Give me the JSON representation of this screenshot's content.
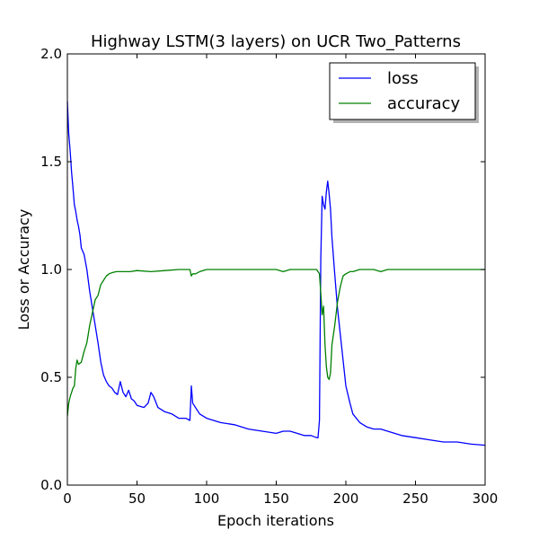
{
  "chart_data": {
    "type": "line",
    "title": "Highway LSTM(3 layers) on UCR Two_Patterns",
    "xlabel": "Epoch iterations",
    "ylabel": "Loss or Accuracy",
    "xlim": [
      0,
      300
    ],
    "ylim": [
      0,
      2.0
    ],
    "xticks": [
      0,
      50,
      100,
      150,
      200,
      250,
      300
    ],
    "xtick_labels": [
      "0",
      "50",
      "100",
      "150",
      "200",
      "250",
      "300"
    ],
    "yticks": [
      0,
      0.5,
      1.0,
      1.5,
      2.0
    ],
    "ytick_labels": [
      "0.0",
      "0.5",
      "1.0",
      "1.5",
      "2.0"
    ],
    "grid": false,
    "legend_position": "top-right",
    "series": [
      {
        "name": "loss",
        "color": "#0000ff",
        "x": [
          0,
          1,
          2,
          3,
          4,
          5,
          6,
          7,
          8,
          9,
          10,
          12,
          14,
          16,
          18,
          20,
          22,
          24,
          26,
          28,
          30,
          32,
          34,
          36,
          38,
          40,
          42,
          44,
          46,
          48,
          50,
          55,
          58,
          60,
          62,
          65,
          70,
          75,
          80,
          85,
          88,
          89,
          90,
          91,
          92,
          95,
          100,
          110,
          120,
          130,
          140,
          150,
          155,
          160,
          165,
          170,
          175,
          179,
          180,
          181,
          182,
          183,
          184,
          185,
          186,
          187,
          188,
          189,
          190,
          192,
          194,
          196,
          198,
          200,
          203,
          205,
          210,
          215,
          220,
          225,
          230,
          235,
          240,
          250,
          260,
          270,
          280,
          290,
          300
        ],
        "y": [
          1.78,
          1.63,
          1.55,
          1.45,
          1.38,
          1.3,
          1.27,
          1.23,
          1.2,
          1.16,
          1.1,
          1.07,
          1.0,
          0.9,
          0.82,
          0.74,
          0.66,
          0.57,
          0.51,
          0.48,
          0.46,
          0.45,
          0.43,
          0.42,
          0.48,
          0.43,
          0.41,
          0.44,
          0.4,
          0.39,
          0.37,
          0.36,
          0.38,
          0.43,
          0.41,
          0.36,
          0.34,
          0.33,
          0.31,
          0.31,
          0.3,
          0.46,
          0.38,
          0.37,
          0.36,
          0.33,
          0.31,
          0.29,
          0.28,
          0.26,
          0.25,
          0.24,
          0.25,
          0.25,
          0.24,
          0.23,
          0.23,
          0.22,
          0.22,
          0.3,
          1.05,
          1.34,
          1.3,
          1.28,
          1.36,
          1.41,
          1.35,
          1.28,
          1.15,
          0.98,
          0.82,
          0.7,
          0.58,
          0.46,
          0.38,
          0.33,
          0.29,
          0.27,
          0.26,
          0.26,
          0.25,
          0.24,
          0.23,
          0.22,
          0.21,
          0.2,
          0.2,
          0.19,
          0.185
        ]
      },
      {
        "name": "accuracy",
        "color": "#008000",
        "x": [
          0,
          1,
          2,
          3,
          4,
          5,
          6,
          7,
          8,
          10,
          12,
          14,
          16,
          18,
          20,
          22,
          24,
          26,
          28,
          30,
          32,
          35,
          40,
          45,
          50,
          60,
          70,
          80,
          88,
          89,
          90,
          92,
          95,
          100,
          120,
          140,
          150,
          155,
          160,
          170,
          179,
          180,
          181,
          182,
          183,
          184,
          185,
          186,
          187,
          188,
          189,
          190,
          192,
          194,
          196,
          198,
          200,
          203,
          205,
          210,
          215,
          220,
          225,
          230,
          240,
          250,
          260,
          270,
          280,
          290,
          300
        ],
        "y": [
          0.32,
          0.38,
          0.41,
          0.43,
          0.45,
          0.46,
          0.54,
          0.58,
          0.56,
          0.57,
          0.62,
          0.66,
          0.74,
          0.8,
          0.86,
          0.88,
          0.93,
          0.95,
          0.97,
          0.98,
          0.985,
          0.99,
          0.99,
          0.99,
          0.995,
          0.99,
          0.995,
          1.0,
          1.0,
          0.97,
          0.98,
          0.98,
          0.99,
          1.0,
          1.0,
          1.0,
          1.0,
          0.99,
          1.0,
          1.0,
          1.0,
          0.99,
          0.98,
          0.89,
          0.79,
          0.83,
          0.65,
          0.55,
          0.5,
          0.49,
          0.52,
          0.65,
          0.74,
          0.85,
          0.92,
          0.97,
          0.98,
          0.99,
          0.99,
          1.0,
          1.0,
          1.0,
          0.99,
          1.0,
          1.0,
          1.0,
          1.0,
          1.0,
          1.0,
          1.0,
          1.0
        ]
      }
    ]
  }
}
